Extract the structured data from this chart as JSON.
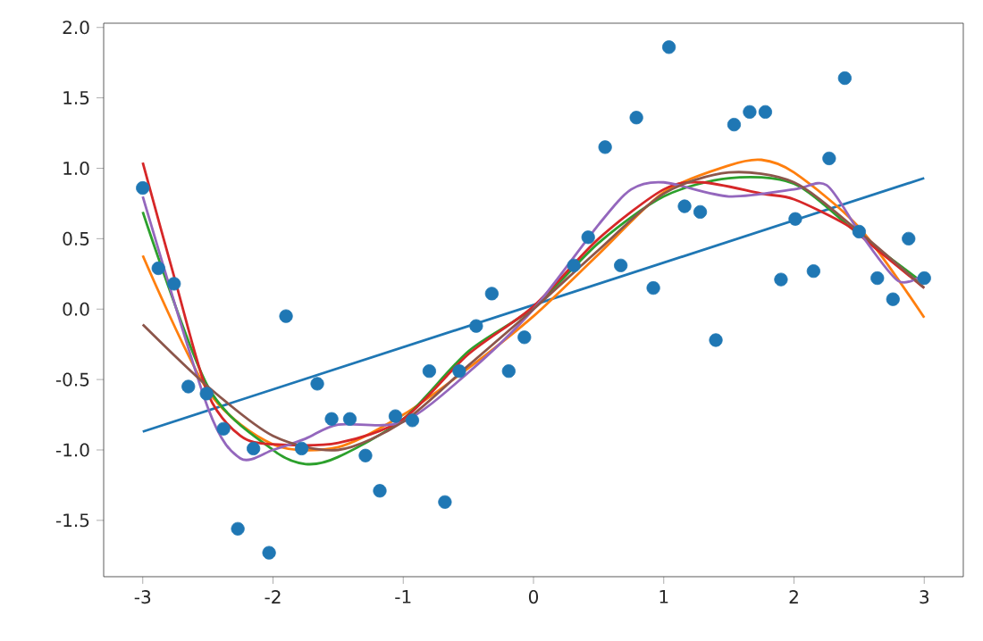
{
  "chart_data": {
    "type": "line",
    "xlim": [
      -3.3,
      3.3
    ],
    "ylim": [
      -1.9,
      2.03
    ],
    "xticks": [
      -3,
      -2,
      -1,
      0,
      1,
      2,
      3
    ],
    "yticks": [
      {
        "value": -1.5,
        "label": "-1.5"
      },
      {
        "value": -1.0,
        "label": "-1.0"
      },
      {
        "value": -0.5,
        "label": "-0.5"
      },
      {
        "value": 0,
        "label": "0.0"
      },
      {
        "value": 0.5,
        "label": "0.5"
      },
      {
        "value": 1.0,
        "label": "1.0"
      },
      {
        "value": 1.5,
        "label": "1.5"
      },
      {
        "value": 2.0,
        "label": "2.0"
      }
    ],
    "grid": false,
    "series": [
      {
        "type": "scatter",
        "color": "#1f77b4",
        "x": [
          -3.0,
          -2.88,
          -2.76,
          -2.65,
          -2.51,
          -2.38,
          -2.27,
          -2.15,
          -2.03,
          -1.9,
          -1.78,
          -1.66,
          -1.55,
          -1.41,
          -1.29,
          -1.18,
          -1.06,
          -0.93,
          -0.8,
          -0.68,
          -0.57,
          -0.44,
          -0.32,
          -0.19,
          -0.07,
          0.31,
          0.42,
          0.55,
          0.67,
          0.79,
          0.92,
          1.04,
          1.16,
          1.28,
          1.4,
          1.54,
          1.66,
          1.78,
          1.9,
          2.01,
          2.15,
          2.27,
          2.39,
          2.5,
          2.64,
          2.76,
          2.88,
          3.0
        ],
        "values": [
          0.86,
          0.29,
          0.18,
          -0.55,
          -0.6,
          -0.85,
          -1.56,
          -0.99,
          -1.73,
          -0.05,
          -0.99,
          -0.53,
          -0.78,
          -0.78,
          -1.04,
          -1.29,
          -0.76,
          -0.79,
          -0.44,
          -1.37,
          -0.44,
          -0.12,
          0.11,
          -0.44,
          -0.2,
          0.31,
          0.51,
          1.15,
          0.31,
          1.36,
          0.15,
          1.86,
          0.73,
          0.69,
          -0.22,
          1.31,
          1.4,
          1.4,
          0.21,
          0.64,
          0.27,
          1.07,
          1.64,
          0.55,
          0.22,
          0.07,
          0.5,
          0.22
        ]
      },
      {
        "color": "#1f77b4",
        "x": [
          -3,
          3
        ],
        "values": [
          -0.87,
          0.93
        ]
      },
      {
        "color": "#ff7f0e",
        "x": [
          -3,
          -2.5,
          -2,
          -1.5,
          -1,
          -0.5,
          0,
          0.5,
          1,
          1.5,
          1.75,
          2,
          2.5,
          3
        ],
        "values": [
          0.38,
          -0.58,
          -0.96,
          -0.98,
          -0.75,
          -0.42,
          -0.05,
          0.39,
          0.83,
          1.02,
          1.06,
          0.97,
          0.58,
          -0.06
        ]
      },
      {
        "color": "#2ca02c",
        "x": [
          -3,
          -2.5,
          -2,
          -1.75,
          -1.5,
          -1,
          -0.5,
          0,
          0.5,
          1,
          1.5,
          2,
          2.5,
          3
        ],
        "values": [
          0.69,
          -0.55,
          -1.0,
          -1.1,
          -1.05,
          -0.78,
          -0.3,
          0.01,
          0.47,
          0.8,
          0.93,
          0.89,
          0.53,
          0.18
        ]
      },
      {
        "color": "#d62728",
        "x": [
          -3,
          -2.75,
          -2.5,
          -2.25,
          -2,
          -1.5,
          -1,
          -0.5,
          0,
          0.5,
          1,
          1.3,
          1.75,
          2,
          2.4,
          2.6,
          3
        ],
        "values": [
          1.04,
          0.2,
          -0.6,
          -0.9,
          -0.96,
          -0.95,
          -0.78,
          -0.32,
          0.02,
          0.5,
          0.85,
          0.9,
          0.82,
          0.78,
          0.6,
          0.45,
          0.15
        ]
      },
      {
        "color": "#9467bd",
        "x": [
          -3,
          -2.5,
          -2.25,
          -2,
          -1.75,
          -1.5,
          -1,
          -0.5,
          0,
          0.5,
          0.75,
          1,
          1.5,
          2,
          2.25,
          2.5,
          2.8,
          3
        ],
        "values": [
          0.8,
          -0.7,
          -1.06,
          -1.0,
          -0.92,
          -0.82,
          -0.8,
          -0.45,
          0.0,
          0.6,
          0.85,
          0.9,
          0.8,
          0.85,
          0.88,
          0.55,
          0.2,
          0.25
        ]
      },
      {
        "color": "#8c564b",
        "x": [
          -3,
          -2.5,
          -2,
          -1.5,
          -1,
          -0.5,
          0,
          0.5,
          1,
          1.5,
          2,
          2.5,
          3
        ],
        "values": [
          -0.11,
          -0.55,
          -0.9,
          -1.0,
          -0.8,
          -0.4,
          0.0,
          0.42,
          0.82,
          0.97,
          0.9,
          0.55,
          0.15
        ]
      }
    ]
  }
}
